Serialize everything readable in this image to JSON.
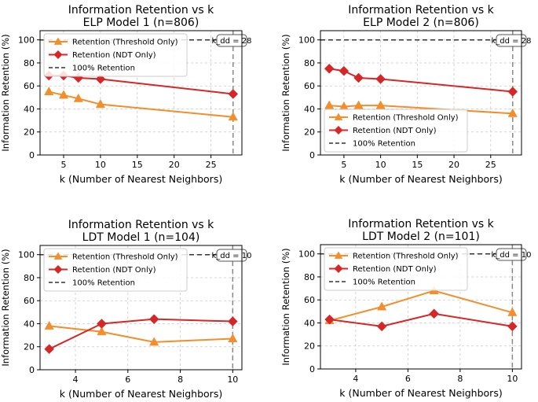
{
  "chart_data": [
    {
      "type": "line",
      "title": "Information Retention vs k",
      "subtitle": "ELP Model 1 (n=806)",
      "xlabel": "k (Number of Nearest Neighbors)",
      "ylabel": "Information Retention (%)",
      "xlim": [
        1.8,
        29.2
      ],
      "ylim": [
        0,
        108
      ],
      "xticks": [
        5,
        10,
        15,
        20,
        25
      ],
      "yticks": [
        0,
        20,
        40,
        60,
        80,
        100
      ],
      "grid": true,
      "legend_position": "top-left",
      "series": [
        {
          "name": "Retention (Threshold Only)",
          "color": "#f28e2b",
          "marker": "triangle",
          "x": [
            3,
            5,
            7,
            10,
            28
          ],
          "values": [
            55,
            52,
            49,
            44,
            33
          ]
        },
        {
          "name": "Retention (NDT Only)",
          "color": "#d62728",
          "marker": "diamond",
          "x": [
            3,
            5,
            7,
            10,
            28
          ],
          "values": [
            69,
            69,
            67,
            66,
            53
          ]
        }
      ],
      "reference_line": {
        "name": "100% Retention",
        "y": 100,
        "color": "#333333"
      },
      "vline": {
        "x": 28,
        "label": "k_dd = 28",
        "color": "#888888"
      }
    },
    {
      "type": "line",
      "title": "Information Retention vs k",
      "subtitle": "ELP Model 2 (n=806)",
      "xlabel": "k (Number of Nearest Neighbors)",
      "ylabel": "Information Retention (%)",
      "xlim": [
        1.8,
        29.2
      ],
      "ylim": [
        0,
        108
      ],
      "xticks": [
        5,
        10,
        15,
        20,
        25
      ],
      "yticks": [
        0,
        20,
        40,
        60,
        80,
        100
      ],
      "grid": true,
      "legend_position": "bottom-left",
      "series": [
        {
          "name": "Retention (Threshold Only)",
          "color": "#f28e2b",
          "marker": "triangle",
          "x": [
            3,
            5,
            7,
            10,
            28
          ],
          "values": [
            43,
            42,
            43,
            43,
            36
          ]
        },
        {
          "name": "Retention (NDT Only)",
          "color": "#d62728",
          "marker": "diamond",
          "x": [
            3,
            5,
            7,
            10,
            28
          ],
          "values": [
            75,
            73,
            67,
            66,
            55
          ]
        }
      ],
      "reference_line": {
        "name": "100% Retention",
        "y": 100,
        "color": "#333333"
      },
      "vline": {
        "x": 28,
        "label": "k_dd = 28",
        "color": "#888888"
      }
    },
    {
      "type": "line",
      "title": "Information Retention vs k",
      "subtitle": "LDT Model 1 (n=104)",
      "xlabel": "k (Number of Nearest Neighbors)",
      "ylabel": "Information Retention (%)",
      "xlim": [
        2.65,
        10.35
      ],
      "ylim": [
        0,
        108
      ],
      "xticks": [
        4,
        6,
        8,
        10
      ],
      "yticks": [
        0,
        20,
        40,
        60,
        80,
        100
      ],
      "grid": true,
      "legend_position": "top-left",
      "series": [
        {
          "name": "Retention (Threshold Only)",
          "color": "#f28e2b",
          "marker": "triangle",
          "x": [
            3,
            5,
            7,
            10
          ],
          "values": [
            38,
            33,
            24,
            27
          ]
        },
        {
          "name": "Retention (NDT Only)",
          "color": "#d62728",
          "marker": "diamond",
          "x": [
            3,
            5,
            7,
            10
          ],
          "values": [
            18,
            40,
            44,
            42
          ]
        }
      ],
      "reference_line": {
        "name": "100% Retention",
        "y": 100,
        "color": "#333333"
      },
      "vline": {
        "x": 10,
        "label": "k_dd = 10",
        "color": "#888888"
      }
    },
    {
      "type": "line",
      "title": "Information Retention vs k",
      "subtitle": "LDT Model 2 (n=101)",
      "xlabel": "k (Number of Nearest Neighbors)",
      "ylabel": "Information Retention (%)",
      "xlim": [
        2.65,
        10.35
      ],
      "ylim": [
        0,
        108
      ],
      "xticks": [
        4,
        6,
        8,
        10
      ],
      "yticks": [
        0,
        20,
        40,
        60,
        80,
        100
      ],
      "grid": true,
      "legend_position": "top-left",
      "series": [
        {
          "name": "Retention (Threshold Only)",
          "color": "#f28e2b",
          "marker": "triangle",
          "x": [
            3,
            5,
            7,
            10
          ],
          "values": [
            42,
            54,
            68,
            49
          ]
        },
        {
          "name": "Retention (NDT Only)",
          "color": "#d62728",
          "marker": "diamond",
          "x": [
            3,
            5,
            7,
            10
          ],
          "values": [
            43,
            37,
            48,
            37
          ]
        }
      ],
      "reference_line": {
        "name": "100% Retention",
        "y": 100,
        "color": "#333333"
      },
      "vline": {
        "x": 10,
        "label": "k_dd = 10",
        "color": "#888888"
      }
    }
  ]
}
